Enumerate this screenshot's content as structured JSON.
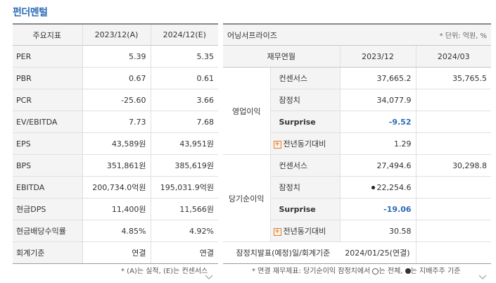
{
  "title": "펀더멘털",
  "left": {
    "headers": [
      "주요지표",
      "2023/12(A)",
      "2024/12(E)"
    ],
    "rows": [
      {
        "label": "PER",
        "a": "5.39",
        "e": "5.35"
      },
      {
        "label": "PBR",
        "a": "0.67",
        "e": "0.61"
      },
      {
        "label": "PCR",
        "a": "-25.60",
        "e": "3.66"
      },
      {
        "label": "EV/EBITDA",
        "a": "7.73",
        "e": "7.68"
      },
      {
        "label": "EPS",
        "a": "43,589원",
        "e": "43,951원"
      },
      {
        "label": "BPS",
        "a": "351,861원",
        "e": "385,619원"
      },
      {
        "label": "EBITDA",
        "a": "200,734.0억원",
        "e": "195,031.9억원"
      },
      {
        "label": "현금DPS",
        "a": "11,400원",
        "e": "11,566원"
      },
      {
        "label": "현금배당수익률",
        "a": "4.85%",
        "e": "4.92%"
      },
      {
        "label": "회계기준",
        "a": "연결",
        "e": "연결"
      }
    ],
    "note": "* (A)는 실적, (E)는 컨센서스"
  },
  "right": {
    "header": "어닝서프라이즈",
    "unit": "* 단위: 억원, %",
    "col_headers": [
      "재무연월",
      "2023/12",
      "2024/03"
    ],
    "groups": [
      {
        "name": "영업이익",
        "rows": [
          {
            "label": "컨센서스",
            "v1": "37,665.2",
            "v2": "35,765.5"
          },
          {
            "label": "잠정치",
            "v1": "34,077.9",
            "v2": ""
          },
          {
            "label": "Surprise",
            "v1": "-9.52",
            "v2": ""
          },
          {
            "label": "전년동기대비",
            "v1": "1.29",
            "v2": ""
          }
        ]
      },
      {
        "name": "당기순이익",
        "rows": [
          {
            "label": "컨센서스",
            "v1": "27,494.6",
            "v2": "30,298.8"
          },
          {
            "label": "잠정치",
            "v1": "22,254.6",
            "v2": ""
          },
          {
            "label": "Surprise",
            "v1": "-19.06",
            "v2": ""
          },
          {
            "label": "전년동기대비",
            "v1": "30.58",
            "v2": ""
          }
        ]
      }
    ],
    "announce_label": "잠정치발표(예정)일/회계기준",
    "announce_value": "2024/01/25(연결)",
    "note_a": "* 연결 재무제표: 당기순이익 잠정치에서",
    "note_b": "는 전체,",
    "note_c": "는 지배주주 기준"
  },
  "colors": {
    "accent": "#2d6bb5",
    "expand": "#e07a2b"
  },
  "icons": {
    "expand": "plus-icon",
    "scroll": "chevron-down-icon"
  }
}
